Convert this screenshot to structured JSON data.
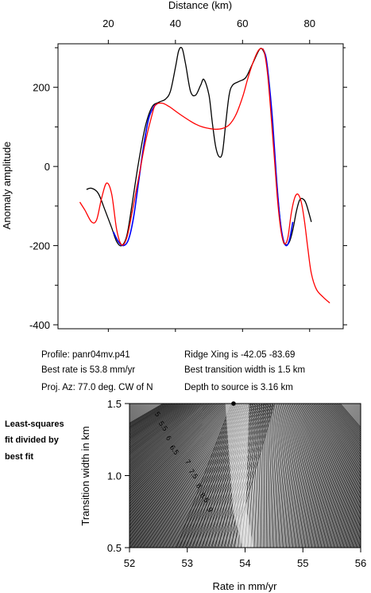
{
  "chart_data": [
    {
      "type": "line",
      "xlabel": "Distance (km)",
      "ylabel": "Anomaly amplitude",
      "xlim": [
        5,
        90
      ],
      "ylim": [
        -410,
        310
      ],
      "xticks": [
        20,
        40,
        60,
        80
      ],
      "yticks": [
        -400,
        -200,
        0,
        200
      ],
      "grid": false,
      "series": [
        {
          "color": "#000000",
          "x": [
            13.5,
            15,
            17,
            19,
            21,
            22.5,
            24,
            25.5,
            27,
            29,
            31,
            33,
            35,
            37,
            38.5,
            40,
            41,
            42,
            43,
            44.5,
            46,
            47.5,
            48.5,
            50,
            51,
            52,
            53,
            54,
            55,
            56,
            57,
            59,
            61,
            63,
            65,
            66,
            67,
            68,
            69,
            70,
            71,
            72,
            73,
            74,
            75,
            76,
            77,
            78,
            79,
            80.5
          ],
          "y": [
            -58,
            -55,
            -68,
            -110,
            -155,
            -190,
            -200,
            -175,
            -100,
            10,
            100,
            150,
            162,
            170,
            190,
            250,
            293,
            298,
            260,
            190,
            180,
            205,
            220,
            180,
            110,
            50,
            25,
            35,
            110,
            180,
            205,
            215,
            225,
            260,
            295,
            295,
            270,
            200,
            100,
            -20,
            -120,
            -185,
            -198,
            -190,
            -160,
            -115,
            -85,
            -82,
            -95,
            -140
          ]
        },
        {
          "color": "#0000ff",
          "x": [
            21.5,
            23,
            24.5,
            26,
            27.5,
            29,
            30.5,
            32,
            33.5,
            34.5,
            66,
            67,
            68,
            69,
            70,
            71,
            72,
            73,
            74,
            75
          ],
          "y": [
            -165,
            -190,
            -200,
            -185,
            -130,
            -40,
            50,
            120,
            150,
            158,
            298,
            275,
            205,
            110,
            -15,
            -120,
            -180,
            -200,
            -185,
            -140
          ]
        },
        {
          "color": "#ff0000",
          "x": [
            11.5,
            13,
            15,
            16.5,
            18,
            19.5,
            21,
            22.5,
            24,
            25.5,
            27,
            29,
            31,
            33,
            34,
            36,
            38,
            40,
            42,
            44,
            46,
            48,
            50,
            52,
            54,
            56,
            58,
            60,
            61.5,
            63,
            64.5,
            65.5,
            66.5,
            67.5,
            68.5,
            69.5,
            70.5,
            71.5,
            72.5,
            73.5,
            74.5,
            75.5,
            76.5,
            77.5,
            78.5,
            79.5,
            80.5,
            82,
            84,
            86
          ],
          "y": [
            -90,
            -110,
            -140,
            -135,
            -80,
            -42,
            -70,
            -160,
            -198,
            -180,
            -120,
            -30,
            60,
            130,
            155,
            160,
            152,
            140,
            128,
            117,
            107,
            100,
            96,
            94,
            96,
            105,
            130,
            175,
            220,
            260,
            290,
            298,
            288,
            230,
            130,
            20,
            -90,
            -165,
            -195,
            -180,
            -120,
            -80,
            -70,
            -90,
            -140,
            -210,
            -270,
            -310,
            -330,
            -345
          ]
        }
      ]
    },
    {
      "type": "heatmap",
      "xlabel": "Rate in mm/yr",
      "ylabel": "Transition width in km",
      "xlim": [
        52,
        56
      ],
      "ylim": [
        0.5,
        1.5
      ],
      "xticks": [
        52,
        53,
        54,
        55,
        56
      ],
      "yticks": [
        0.5,
        1.0,
        1.5
      ],
      "best_fit_point": [
        53.8,
        1.5
      ],
      "contour_labels": [
        "5",
        "5.5",
        "6",
        "6.5",
        "7",
        "7.5",
        "8",
        "8.5",
        "9"
      ]
    }
  ],
  "info": {
    "profile": "Profile: panr04mv.p41",
    "ridge_xing": "Ridge Xing is -42.05 -83.69",
    "best_rate": "Best rate is 53.8 mm/yr",
    "best_width": "Best transition width is 1.5 km",
    "proj_az": "Proj. Az: 77.0 deg. CW of N",
    "depth": "Depth to source is   3.16 km"
  },
  "side_note": [
    "Least-squares",
    "fit divided by",
    "best fit"
  ]
}
